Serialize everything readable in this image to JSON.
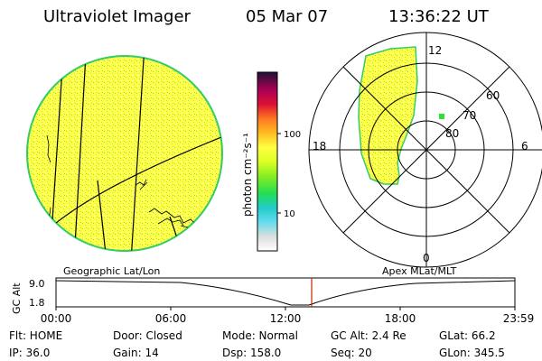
{
  "header": {
    "instrument": "Ultraviolet Imager",
    "date": "05 Mar 07",
    "time": "13:36:22 UT"
  },
  "colorbar": {
    "unit_label": "photon cm⁻²s⁻¹",
    "tick_100": "100",
    "tick_10": "10"
  },
  "panel_labels": {
    "left": "Geographic Lat/Lon",
    "right": "Apex MLat/MLT"
  },
  "polar": {
    "mlt_top": "12",
    "mlt_bottom": "0",
    "mlt_left": "18",
    "mlt_right": "6",
    "lat_60": "60",
    "lat_70": "70",
    "lat_80": "80"
  },
  "timeline": {
    "axis_label": "GC Alt",
    "y_top": "9.0",
    "y_bottom": "1.8",
    "ticks": [
      "00:00",
      "06:00",
      "12:00",
      "18:00",
      "23:59"
    ]
  },
  "status": {
    "filter": "Flt: HOME",
    "door": "Door: Closed",
    "mode": "Mode: Normal",
    "gc_alt": "GC Alt: 2.4 Re",
    "glat": "GLat:  66.2",
    "ip": "IP: 36.0",
    "gain": "Gain: 14",
    "dsp": "Dsp:  158.0",
    "seq": "Seq: 20",
    "glon": "GLon: 345.5"
  },
  "colors": {
    "earth_fill": "#ffff33",
    "earth_limb": "#33cc66",
    "auroral_fill": "#ffff33",
    "marker": "#33dd33",
    "time_cursor": "#cc2200"
  }
}
